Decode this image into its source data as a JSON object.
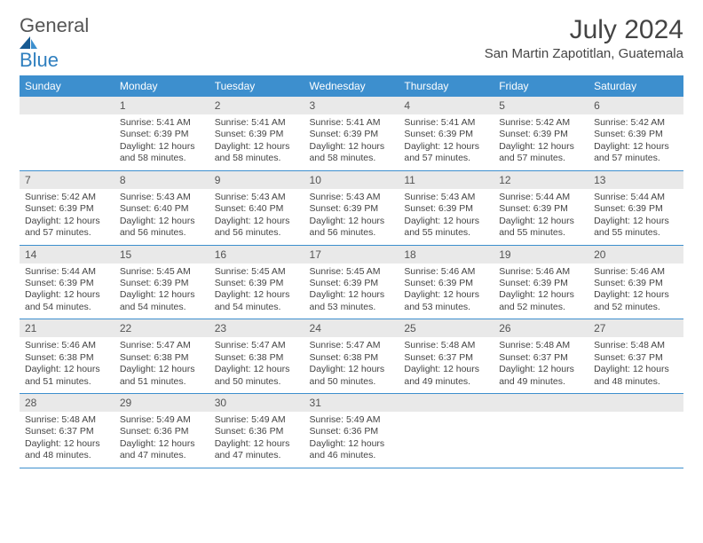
{
  "logo": {
    "word1": "General",
    "word2": "Blue"
  },
  "header": {
    "title": "July 2024",
    "location": "San Martin Zapotitlan, Guatemala"
  },
  "colors": {
    "header_bg": "#3d8fce",
    "header_text": "#ffffff",
    "daynum_bg": "#e9e9e9",
    "daynum_text": "#545454",
    "rule": "#3d8fce",
    "logo_gray": "#555555",
    "logo_blue": "#2f7fbf",
    "body_text": "#444444",
    "page_bg": "#ffffff"
  },
  "calendar": {
    "day_labels": [
      "Sunday",
      "Monday",
      "Tuesday",
      "Wednesday",
      "Thursday",
      "Friday",
      "Saturday"
    ],
    "column_count": 7,
    "fonts": {
      "header_pt": 12,
      "daynum_pt": 12,
      "cell_pt": 10.5,
      "title_pt": 30,
      "location_pt": 15
    }
  },
  "days": {
    "d1": {
      "num": "1",
      "sunrise": "Sunrise: 5:41 AM",
      "sunset": "Sunset: 6:39 PM",
      "daylight": "Daylight: 12 hours and 58 minutes."
    },
    "d2": {
      "num": "2",
      "sunrise": "Sunrise: 5:41 AM",
      "sunset": "Sunset: 6:39 PM",
      "daylight": "Daylight: 12 hours and 58 minutes."
    },
    "d3": {
      "num": "3",
      "sunrise": "Sunrise: 5:41 AM",
      "sunset": "Sunset: 6:39 PM",
      "daylight": "Daylight: 12 hours and 58 minutes."
    },
    "d4": {
      "num": "4",
      "sunrise": "Sunrise: 5:41 AM",
      "sunset": "Sunset: 6:39 PM",
      "daylight": "Daylight: 12 hours and 57 minutes."
    },
    "d5": {
      "num": "5",
      "sunrise": "Sunrise: 5:42 AM",
      "sunset": "Sunset: 6:39 PM",
      "daylight": "Daylight: 12 hours and 57 minutes."
    },
    "d6": {
      "num": "6",
      "sunrise": "Sunrise: 5:42 AM",
      "sunset": "Sunset: 6:39 PM",
      "daylight": "Daylight: 12 hours and 57 minutes."
    },
    "d7": {
      "num": "7",
      "sunrise": "Sunrise: 5:42 AM",
      "sunset": "Sunset: 6:39 PM",
      "daylight": "Daylight: 12 hours and 57 minutes."
    },
    "d8": {
      "num": "8",
      "sunrise": "Sunrise: 5:43 AM",
      "sunset": "Sunset: 6:40 PM",
      "daylight": "Daylight: 12 hours and 56 minutes."
    },
    "d9": {
      "num": "9",
      "sunrise": "Sunrise: 5:43 AM",
      "sunset": "Sunset: 6:40 PM",
      "daylight": "Daylight: 12 hours and 56 minutes."
    },
    "d10": {
      "num": "10",
      "sunrise": "Sunrise: 5:43 AM",
      "sunset": "Sunset: 6:39 PM",
      "daylight": "Daylight: 12 hours and 56 minutes."
    },
    "d11": {
      "num": "11",
      "sunrise": "Sunrise: 5:43 AM",
      "sunset": "Sunset: 6:39 PM",
      "daylight": "Daylight: 12 hours and 55 minutes."
    },
    "d12": {
      "num": "12",
      "sunrise": "Sunrise: 5:44 AM",
      "sunset": "Sunset: 6:39 PM",
      "daylight": "Daylight: 12 hours and 55 minutes."
    },
    "d13": {
      "num": "13",
      "sunrise": "Sunrise: 5:44 AM",
      "sunset": "Sunset: 6:39 PM",
      "daylight": "Daylight: 12 hours and 55 minutes."
    },
    "d14": {
      "num": "14",
      "sunrise": "Sunrise: 5:44 AM",
      "sunset": "Sunset: 6:39 PM",
      "daylight": "Daylight: 12 hours and 54 minutes."
    },
    "d15": {
      "num": "15",
      "sunrise": "Sunrise: 5:45 AM",
      "sunset": "Sunset: 6:39 PM",
      "daylight": "Daylight: 12 hours and 54 minutes."
    },
    "d16": {
      "num": "16",
      "sunrise": "Sunrise: 5:45 AM",
      "sunset": "Sunset: 6:39 PM",
      "daylight": "Daylight: 12 hours and 54 minutes."
    },
    "d17": {
      "num": "17",
      "sunrise": "Sunrise: 5:45 AM",
      "sunset": "Sunset: 6:39 PM",
      "daylight": "Daylight: 12 hours and 53 minutes."
    },
    "d18": {
      "num": "18",
      "sunrise": "Sunrise: 5:46 AM",
      "sunset": "Sunset: 6:39 PM",
      "daylight": "Daylight: 12 hours and 53 minutes."
    },
    "d19": {
      "num": "19",
      "sunrise": "Sunrise: 5:46 AM",
      "sunset": "Sunset: 6:39 PM",
      "daylight": "Daylight: 12 hours and 52 minutes."
    },
    "d20": {
      "num": "20",
      "sunrise": "Sunrise: 5:46 AM",
      "sunset": "Sunset: 6:39 PM",
      "daylight": "Daylight: 12 hours and 52 minutes."
    },
    "d21": {
      "num": "21",
      "sunrise": "Sunrise: 5:46 AM",
      "sunset": "Sunset: 6:38 PM",
      "daylight": "Daylight: 12 hours and 51 minutes."
    },
    "d22": {
      "num": "22",
      "sunrise": "Sunrise: 5:47 AM",
      "sunset": "Sunset: 6:38 PM",
      "daylight": "Daylight: 12 hours and 51 minutes."
    },
    "d23": {
      "num": "23",
      "sunrise": "Sunrise: 5:47 AM",
      "sunset": "Sunset: 6:38 PM",
      "daylight": "Daylight: 12 hours and 50 minutes."
    },
    "d24": {
      "num": "24",
      "sunrise": "Sunrise: 5:47 AM",
      "sunset": "Sunset: 6:38 PM",
      "daylight": "Daylight: 12 hours and 50 minutes."
    },
    "d25": {
      "num": "25",
      "sunrise": "Sunrise: 5:48 AM",
      "sunset": "Sunset: 6:37 PM",
      "daylight": "Daylight: 12 hours and 49 minutes."
    },
    "d26": {
      "num": "26",
      "sunrise": "Sunrise: 5:48 AM",
      "sunset": "Sunset: 6:37 PM",
      "daylight": "Daylight: 12 hours and 49 minutes."
    },
    "d27": {
      "num": "27",
      "sunrise": "Sunrise: 5:48 AM",
      "sunset": "Sunset: 6:37 PM",
      "daylight": "Daylight: 12 hours and 48 minutes."
    },
    "d28": {
      "num": "28",
      "sunrise": "Sunrise: 5:48 AM",
      "sunset": "Sunset: 6:37 PM",
      "daylight": "Daylight: 12 hours and 48 minutes."
    },
    "d29": {
      "num": "29",
      "sunrise": "Sunrise: 5:49 AM",
      "sunset": "Sunset: 6:36 PM",
      "daylight": "Daylight: 12 hours and 47 minutes."
    },
    "d30": {
      "num": "30",
      "sunrise": "Sunrise: 5:49 AM",
      "sunset": "Sunset: 6:36 PM",
      "daylight": "Daylight: 12 hours and 47 minutes."
    },
    "d31": {
      "num": "31",
      "sunrise": "Sunrise: 5:49 AM",
      "sunset": "Sunset: 6:36 PM",
      "daylight": "Daylight: 12 hours and 46 minutes."
    }
  },
  "grid": [
    [
      null,
      "d1",
      "d2",
      "d3",
      "d4",
      "d5",
      "d6"
    ],
    [
      "d7",
      "d8",
      "d9",
      "d10",
      "d11",
      "d12",
      "d13"
    ],
    [
      "d14",
      "d15",
      "d16",
      "d17",
      "d18",
      "d19",
      "d20"
    ],
    [
      "d21",
      "d22",
      "d23",
      "d24",
      "d25",
      "d26",
      "d27"
    ],
    [
      "d28",
      "d29",
      "d30",
      "d31",
      null,
      null,
      null
    ]
  ]
}
